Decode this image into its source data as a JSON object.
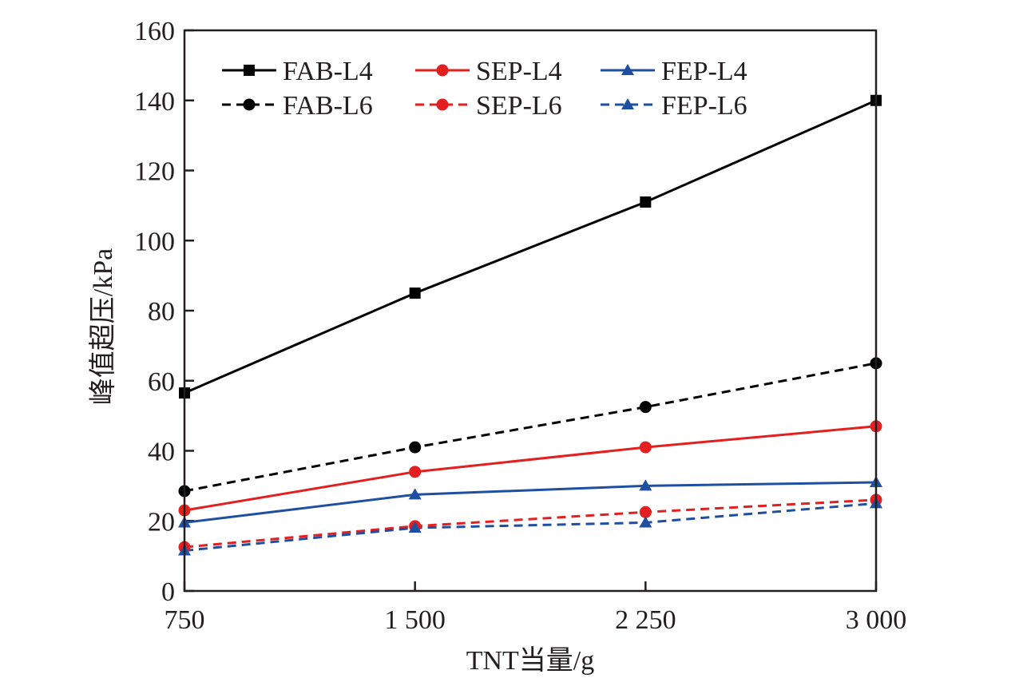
{
  "chart_data": {
    "type": "line",
    "title": "",
    "xlabel": "TNT当量/g",
    "ylabel": "峰值超压/kPa",
    "x": [
      750,
      1500,
      2250,
      3000
    ],
    "x_tick_labels": [
      "750",
      "1 500",
      "2 250",
      "3 000"
    ],
    "xlim": [
      750,
      3000
    ],
    "ylim": [
      0,
      160
    ],
    "y_ticks": [
      0,
      20,
      40,
      60,
      80,
      100,
      120,
      140,
      160
    ],
    "y_tick_labels": [
      "0",
      "20",
      "40",
      "60",
      "80",
      "100",
      "120",
      "140",
      "160"
    ],
    "grid": false,
    "legend_position": "top",
    "series": [
      {
        "name": "FAB-L4",
        "values": [
          56.5,
          85,
          111,
          140
        ],
        "color": "#000000",
        "dash": "solid",
        "marker": "square"
      },
      {
        "name": "SEP-L4",
        "values": [
          23,
          34,
          41,
          47
        ],
        "color": "#e3201f",
        "dash": "solid",
        "marker": "circle"
      },
      {
        "name": "FEP-L4",
        "values": [
          19.5,
          27.5,
          30,
          31
        ],
        "color": "#1f4fa0",
        "dash": "solid",
        "marker": "triangle"
      },
      {
        "name": "FAB-L6",
        "values": [
          28.5,
          41,
          52.5,
          65
        ],
        "color": "#000000",
        "dash": "dashed",
        "marker": "circle"
      },
      {
        "name": "SEP-L6",
        "values": [
          12.5,
          18.5,
          22.5,
          26
        ],
        "color": "#e3201f",
        "dash": "dashed",
        "marker": "circle"
      },
      {
        "name": "FEP-L6",
        "values": [
          11.5,
          18,
          19.5,
          25
        ],
        "color": "#1f4fa0",
        "dash": "dashed",
        "marker": "triangle"
      }
    ]
  }
}
